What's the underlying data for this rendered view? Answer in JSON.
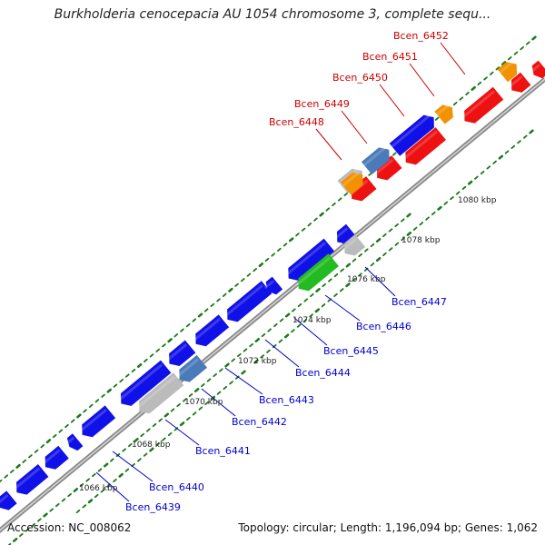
{
  "title": "Burkholderia cenocepacia AU 1054 chromosome 3, complete sequ...",
  "footer": {
    "accession": "Accession: NC_008062",
    "topology": "Topology: circular; Length: 1,196,094 bp; Genes: 1,062"
  },
  "colors": {
    "forward_gene": "#1010e8",
    "reverse_gene": "#ee1111",
    "highlight_green": "#22bb22",
    "gray_gene": "#bbbbbb",
    "orange_gene": "#f39200",
    "steel_gene": "#4a7bb8",
    "dots": "#1a7a1a",
    "label_blue": "#0000cc",
    "label_red": "#cc0000",
    "backbone": "#888888"
  },
  "scale_labels": [
    "1066 kbp",
    "1068 kbp",
    "1070 kbp",
    "1072 kbp",
    "1074 kbp",
    "1076 kbp",
    "1078 kbp",
    "1080 kbp"
  ],
  "genes_upper": [
    {
      "label": "Bcen_6448"
    },
    {
      "label": "Bcen_6449"
    },
    {
      "label": "Bcen_6450"
    },
    {
      "label": "Bcen_6451"
    },
    {
      "label": "Bcen_6452"
    }
  ],
  "genes_lower": [
    {
      "label": "Bcen_6439"
    },
    {
      "label": "Bcen_6440"
    },
    {
      "label": "Bcen_6441"
    },
    {
      "label": "Bcen_6442"
    },
    {
      "label": "Bcen_6443"
    },
    {
      "label": "Bcen_6444"
    },
    {
      "label": "Bcen_6445"
    },
    {
      "label": "Bcen_6446"
    },
    {
      "label": "Bcen_6447"
    }
  ]
}
